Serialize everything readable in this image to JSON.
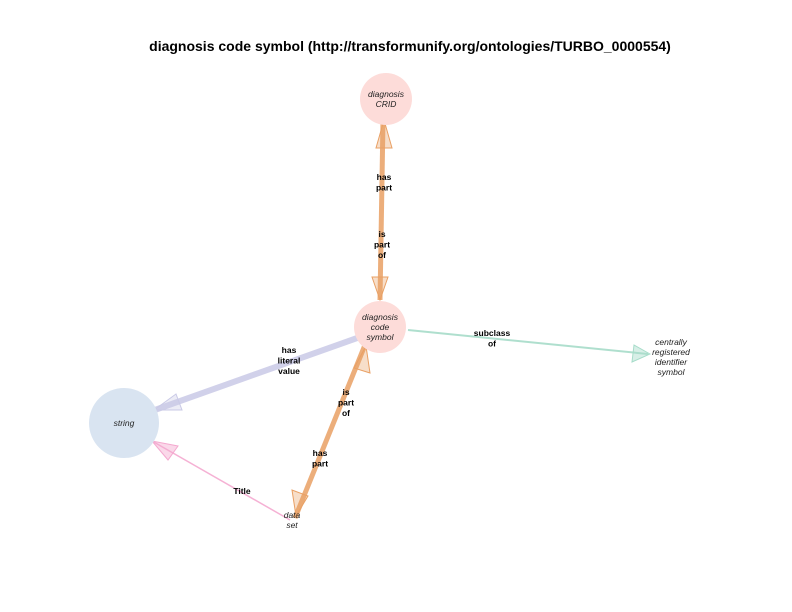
{
  "title": "diagnosis code symbol (http://transformunify.org/ontologies/TURBO_0000554)",
  "nodes": {
    "diagnosis_crid": {
      "lines": [
        "diagnosis",
        "CRID"
      ],
      "fill": "#fddcd9"
    },
    "diagnosis_code_symbol": {
      "lines": [
        "diagnosis",
        "code",
        "symbol"
      ],
      "fill": "#fddcd9"
    },
    "string": {
      "lines": [
        "string"
      ],
      "fill": "#d9e4f1"
    },
    "data_set": {
      "lines": [
        "data",
        "set"
      ]
    },
    "centrally_registered_identifier_symbol": {
      "lines": [
        "centrally",
        "registered",
        "identifier",
        "symbol"
      ]
    }
  },
  "edges": {
    "crid_has_part": {
      "lines": [
        "has",
        "part"
      ],
      "color": "#e9a064"
    },
    "symbol_is_part_of_crid": {
      "lines": [
        "is",
        "part",
        "of"
      ],
      "color": "#e9a064"
    },
    "subclass_of": {
      "lines": [
        "subclass",
        "of"
      ],
      "color": "#a6dcc9"
    },
    "has_literal_value": {
      "lines": [
        "has",
        "literal",
        "value"
      ],
      "color": "#c9c9e6"
    },
    "symbol_is_part_of_dataset": {
      "lines": [
        "is",
        "part",
        "of"
      ],
      "color": "#e9a064"
    },
    "dataset_has_part": {
      "lines": [
        "has",
        "part"
      ],
      "color": "#e9a064"
    },
    "title_edge": {
      "lines": [
        "Title"
      ],
      "color": "#f4a9cf"
    }
  }
}
